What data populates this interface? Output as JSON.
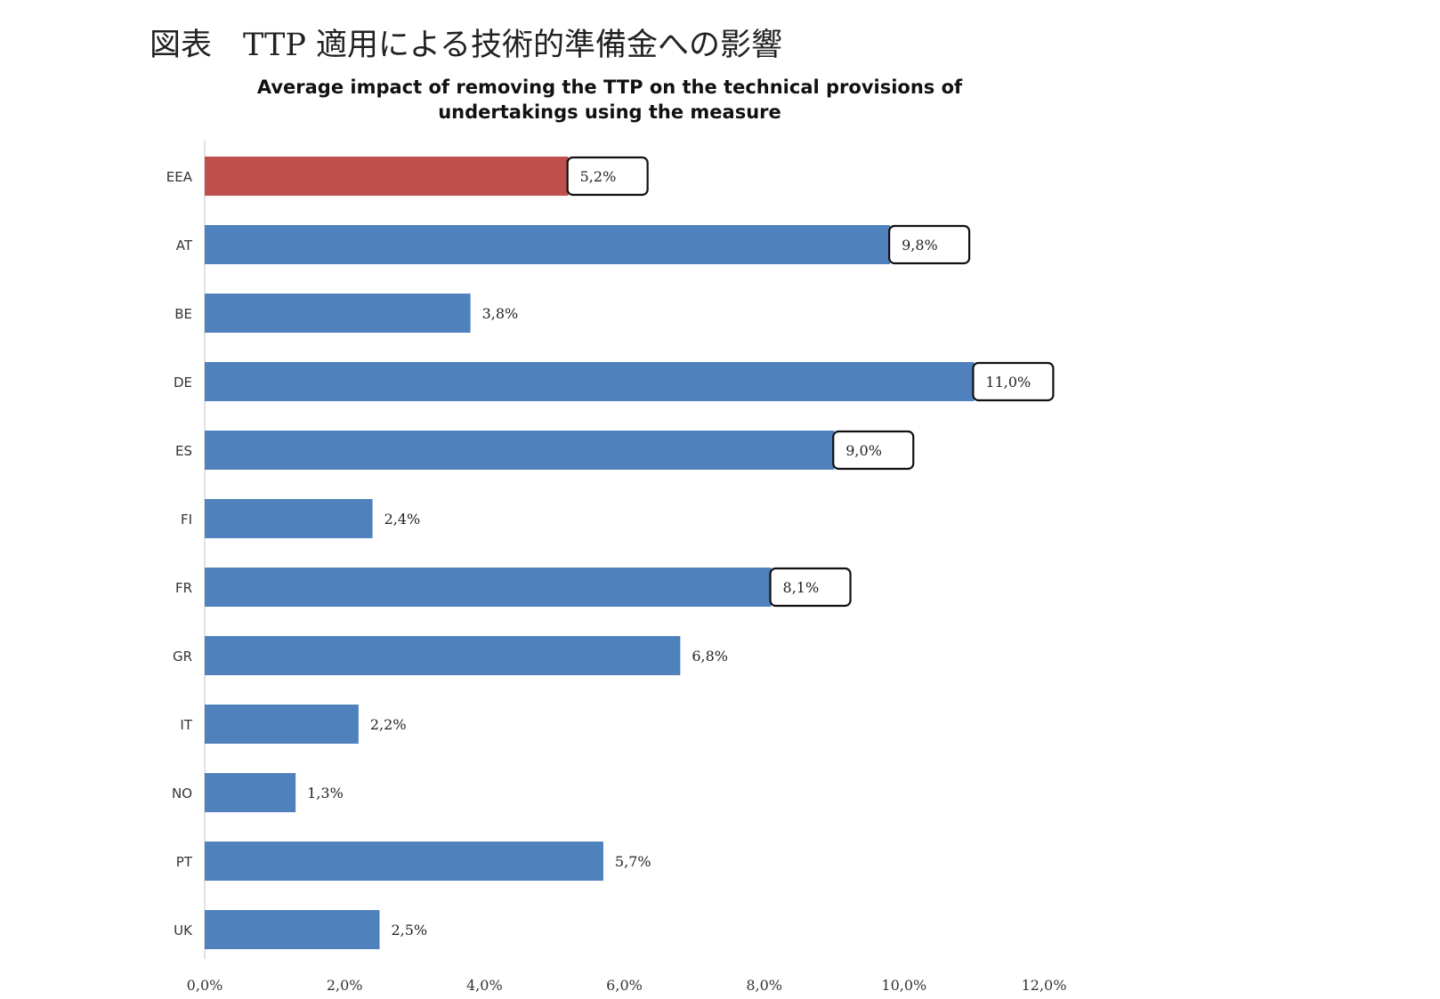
{
  "header": {
    "jp_title": "図表　TTP 適用による技術的準備金への影響"
  },
  "chart_data": {
    "type": "bar",
    "orientation": "horizontal",
    "title_line1": "Average impact of removing the TTP on the technical provisions of",
    "title_line2": "undertakings using the measure",
    "categories": [
      "EEA",
      "AT",
      "BE",
      "DE",
      "ES",
      "FI",
      "FR",
      "GR",
      "IT",
      "NO",
      "PT",
      "UK"
    ],
    "values": [
      5.2,
      9.8,
      3.8,
      11.0,
      9.0,
      2.4,
      8.1,
      6.8,
      2.2,
      1.3,
      5.7,
      2.5
    ],
    "value_labels": [
      "5,2%",
      "9,8%",
      "3,8%",
      "11,0%",
      "9,0%",
      "2,4%",
      "8,1%",
      "6,8%",
      "2,2%",
      "1,3%",
      "5,7%",
      "2,5%"
    ],
    "boxed_labels": [
      "EEA",
      "AT",
      "DE",
      "ES",
      "FR"
    ],
    "highlight_category": "EEA",
    "colors": {
      "highlight": "#c0504d",
      "bar": "#4f81bd"
    },
    "xlim": [
      0,
      12
    ],
    "x_ticks": [
      0,
      2,
      4,
      6,
      8,
      10,
      12
    ],
    "x_tick_labels": [
      "0,0%",
      "2,0%",
      "4,0%",
      "6,0%",
      "8,0%",
      "10,0%",
      "12,0%"
    ],
    "grid": false,
    "legend": "none"
  }
}
